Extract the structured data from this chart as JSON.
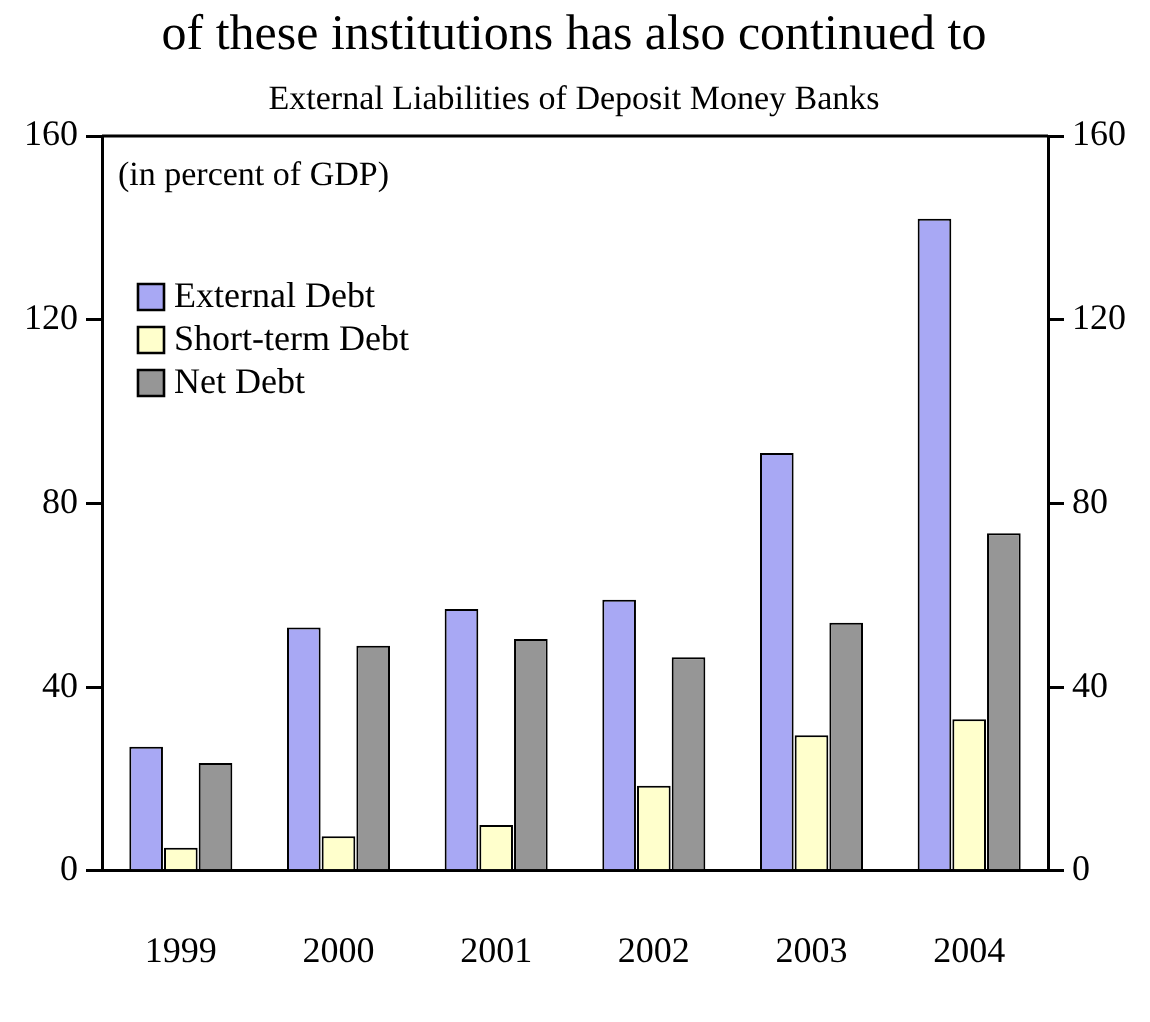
{
  "chart_data": {
    "type": "bar",
    "title": "External Liabilities of Deposit Money Banks",
    "annotations": [
      "of these institutions has also continued to",
      "(in percent of GDP)"
    ],
    "categories": [
      "1999",
      "2000",
      "2001",
      "2002",
      "2003",
      "2004"
    ],
    "series": [
      {
        "name": "External Debt",
        "color": "#a8a8f4",
        "values": [
          27,
          53,
          57,
          59,
          91,
          142
        ]
      },
      {
        "name": "Short-term Debt",
        "color": "#ffffcc",
        "values": [
          5,
          7.5,
          10,
          18.5,
          29.5,
          33
        ]
      },
      {
        "name": "Net Debt",
        "color": "#969696",
        "values": [
          23.5,
          49,
          50.5,
          46.5,
          54,
          73.5
        ]
      }
    ],
    "ylim": [
      0,
      160
    ],
    "yticks": [
      0,
      40,
      80,
      120,
      160
    ],
    "y2lim": [
      0,
      160
    ],
    "y2ticks": [
      0,
      40,
      80,
      120,
      160
    ],
    "grid": false,
    "legend": "top left"
  }
}
